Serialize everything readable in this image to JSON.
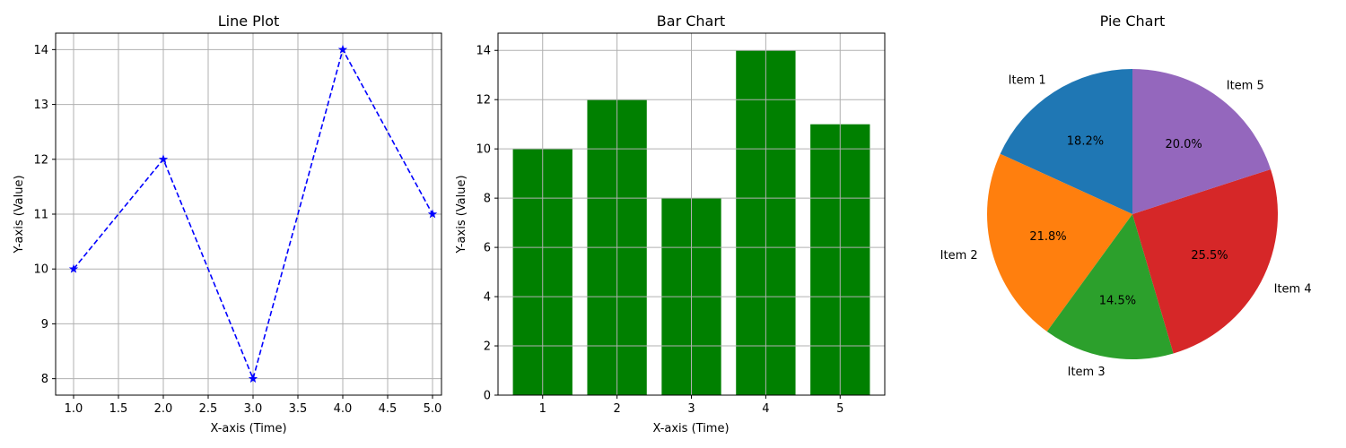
{
  "chart_data": [
    {
      "type": "line",
      "title": "Line Plot",
      "xlabel": "X-axis (Time)",
      "ylabel": "Y-axis (Value)",
      "x": [
        1,
        2,
        3,
        4,
        5
      ],
      "series": [
        {
          "values": [
            10,
            12,
            8,
            14,
            11
          ]
        }
      ],
      "xlim": [
        0.8,
        5.1
      ],
      "ylim": [
        7.7,
        14.3
      ],
      "xticks": [
        1.0,
        1.5,
        2.0,
        2.5,
        3.0,
        3.5,
        4.0,
        4.5,
        5.0
      ],
      "xtick_labels": [
        "1.0",
        "1.5",
        "2.0",
        "2.5",
        "3.0",
        "3.5",
        "4.0",
        "4.5",
        "5.0"
      ],
      "yticks": [
        8,
        9,
        10,
        11,
        12,
        13,
        14
      ],
      "ytick_labels": [
        "8",
        "9",
        "10",
        "11",
        "12",
        "13",
        "14"
      ],
      "grid": true,
      "line_style": "dashed",
      "marker": "star",
      "color": "#0000ff"
    },
    {
      "type": "bar",
      "title": "Bar Chart",
      "xlabel": "X-axis (Time)",
      "ylabel": "Y-axis (Value)",
      "categories": [
        "1",
        "2",
        "3",
        "4",
        "5"
      ],
      "values": [
        10,
        12,
        8,
        14,
        11
      ],
      "xlim": [
        0.4,
        5.6
      ],
      "ylim": [
        0,
        14.7
      ],
      "yticks": [
        0,
        2,
        4,
        6,
        8,
        10,
        12,
        14
      ],
      "ytick_labels": [
        "0",
        "2",
        "4",
        "6",
        "8",
        "10",
        "12",
        "14"
      ],
      "grid": true,
      "color": "#008000"
    },
    {
      "type": "pie",
      "title": "Pie Chart",
      "labels": [
        "Item 1",
        "Item 2",
        "Item 3",
        "Item 4",
        "Item 5"
      ],
      "values": [
        10,
        12,
        8,
        14,
        11
      ],
      "percent_labels": [
        "18.2%",
        "21.8%",
        "14.5%",
        "25.5%",
        "20.0%"
      ],
      "colors": [
        "#1f77b4",
        "#ff7f0e",
        "#2ca02c",
        "#d62728",
        "#9467bd"
      ],
      "start_angle": 90
    }
  ]
}
